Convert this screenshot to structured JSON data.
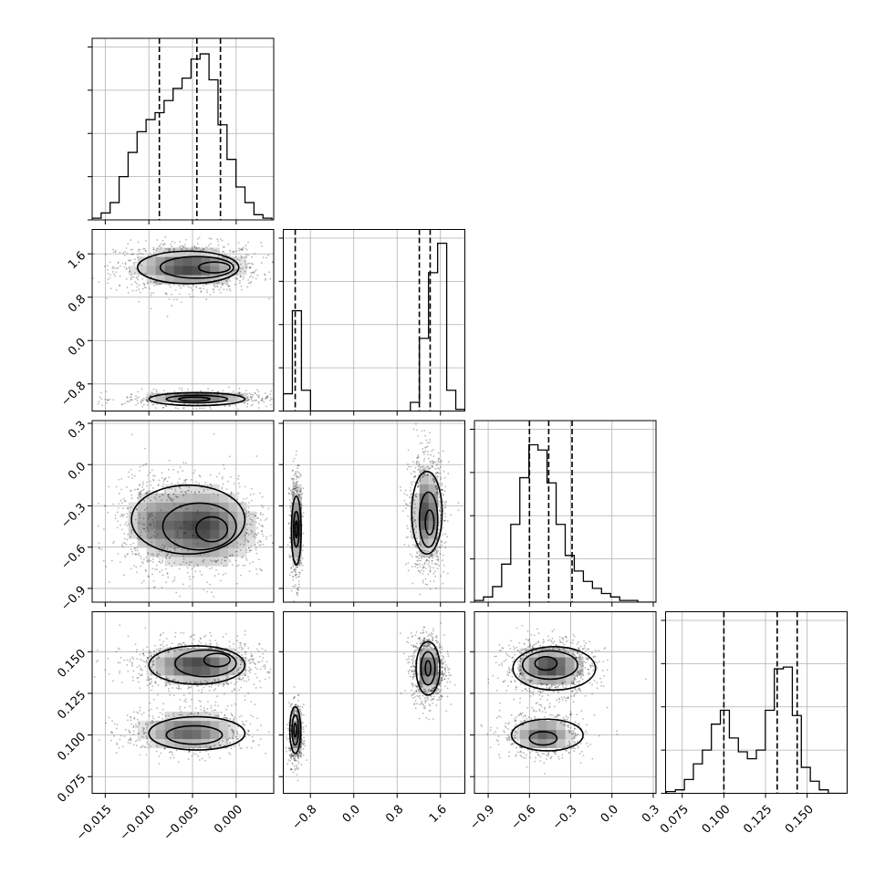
{
  "chart_data": {
    "type": "corner",
    "params": [
      "",
      "",
      "",
      ""
    ],
    "lims": [
      [
        -0.0165,
        0.0043
      ],
      [
        -1.3,
        2.05
      ],
      [
        -1.0,
        0.32
      ],
      [
        0.065,
        0.174
      ]
    ],
    "ticks": [
      [
        -0.015,
        -0.01,
        -0.005,
        0.0
      ],
      [
        -0.8,
        0.0,
        0.8,
        1.6
      ],
      [
        -0.9,
        -0.6,
        -0.3,
        0.0,
        0.3
      ],
      [
        0.075,
        0.1,
        0.125,
        0.15
      ]
    ],
    "tick_labels": [
      [
        "−0.015",
        "−0.010",
        "−0.005",
        "0.000"
      ],
      [
        "−0.8",
        "0.0",
        "0.8",
        "1.6"
      ],
      [
        "−0.9",
        "−0.6",
        "−0.3",
        "0.0",
        "0.3"
      ],
      [
        "0.075",
        "0.100",
        "0.125",
        "0.150"
      ]
    ],
    "quantiles": [
      [
        -0.0088,
        -0.0045,
        -0.0018
      ],
      [
        -1.08,
        1.21,
        1.41
      ],
      [
        -0.6,
        -0.46,
        -0.29
      ],
      [
        0.1,
        0.132,
        0.144
      ]
    ],
    "histograms": [
      {
        "edges_start": -0.0165,
        "bin_width": 0.00103,
        "counts": [
          0.01,
          0.04,
          0.1,
          0.25,
          0.39,
          0.51,
          0.58,
          0.62,
          0.69,
          0.76,
          0.82,
          0.93,
          0.96,
          0.81,
          0.55,
          0.35,
          0.19,
          0.1,
          0.03,
          0.01
        ]
      },
      {
        "edges_start": -1.3,
        "bin_width": 0.1675,
        "counts": [
          0.1,
          0.58,
          0.12,
          0.0,
          0.0,
          0.0,
          0.0,
          0.0,
          0.0,
          0.0,
          0.0,
          0.0,
          0.0,
          0.0,
          0.05,
          0.42,
          0.8,
          0.97,
          0.12,
          0.01
        ]
      },
      {
        "edges_start": -1.0,
        "bin_width": 0.066,
        "counts": [
          0.01,
          0.03,
          0.09,
          0.22,
          0.45,
          0.72,
          0.91,
          0.88,
          0.69,
          0.45,
          0.27,
          0.18,
          0.12,
          0.08,
          0.05,
          0.03,
          0.01,
          0.01,
          0.0,
          0.0
        ]
      },
      {
        "edges_start": 0.0655,
        "bin_width": 0.0054,
        "counts": [
          0.01,
          0.02,
          0.08,
          0.17,
          0.25,
          0.4,
          0.48,
          0.32,
          0.24,
          0.2,
          0.25,
          0.48,
          0.72,
          0.73,
          0.45,
          0.15,
          0.07,
          0.02,
          0.0,
          0.0
        ]
      }
    ],
    "hist_ymax": 1.0,
    "blobs": [
      {
        "row": 1,
        "col": 0,
        "parts": [
          {
            "cx": -0.0055,
            "cy": 1.35,
            "sx": 0.0033,
            "sy": 0.18,
            "w": 1.0,
            "dens": 0.85
          },
          {
            "cx": -0.0045,
            "cy": -1.08,
            "sx": 0.0034,
            "sy": 0.06,
            "w": 0.55,
            "dens": 0.7
          }
        ]
      },
      {
        "row": 2,
        "col": 0,
        "parts": [
          {
            "cx": -0.004,
            "cy": -0.45,
            "sx": 0.0032,
            "sy": 0.15,
            "w": 1.0,
            "dens": 0.85
          },
          {
            "cx": -0.0095,
            "cy": -0.42,
            "sx": 0.0018,
            "sy": 0.13,
            "w": 0.5,
            "dens": 0.4
          }
        ]
      },
      {
        "row": 2,
        "col": 1,
        "parts": [
          {
            "cx": -1.07,
            "cy": -0.45,
            "sx": 0.045,
            "sy": 0.16,
            "w": 0.5,
            "dens": 0.75
          },
          {
            "cx": 1.35,
            "cy": -0.35,
            "sx": 0.13,
            "sy": 0.17,
            "w": 1.0,
            "dens": 0.85
          }
        ]
      },
      {
        "row": 3,
        "col": 0,
        "parts": [
          {
            "cx": -0.0045,
            "cy": 0.142,
            "sx": 0.003,
            "sy": 0.006,
            "w": 1.0,
            "dens": 0.85
          },
          {
            "cx": -0.0055,
            "cy": 0.102,
            "sx": 0.003,
            "sy": 0.006,
            "w": 0.6,
            "dens": 0.7
          }
        ]
      },
      {
        "row": 3,
        "col": 1,
        "parts": [
          {
            "cx": 1.37,
            "cy": 0.14,
            "sx": 0.12,
            "sy": 0.008,
            "w": 1.0,
            "dens": 0.85
          },
          {
            "cx": -1.07,
            "cy": 0.1,
            "sx": 0.05,
            "sy": 0.007,
            "w": 0.55,
            "dens": 0.75
          }
        ]
      },
      {
        "row": 3,
        "col": 2,
        "parts": [
          {
            "cx": -0.45,
            "cy": 0.141,
            "sx": 0.13,
            "sy": 0.0065,
            "w": 1.0,
            "dens": 0.85
          },
          {
            "cx": -0.5,
            "cy": 0.1,
            "sx": 0.12,
            "sy": 0.0055,
            "w": 0.6,
            "dens": 0.7
          }
        ]
      }
    ],
    "contours": [
      {
        "row": 1,
        "col": 0,
        "rings": [
          {
            "cx": -0.0055,
            "cy": 1.35,
            "rx": 0.0058,
            "ry": 0.3
          },
          {
            "cx": -0.0045,
            "cy": 1.35,
            "rx": 0.0042,
            "ry": 0.2
          },
          {
            "cx": -0.0025,
            "cy": 1.35,
            "rx": 0.0018,
            "ry": 0.1
          },
          {
            "cx": -0.0045,
            "cy": -1.08,
            "rx": 0.0055,
            "ry": 0.12
          },
          {
            "cx": -0.0045,
            "cy": -1.08,
            "rx": 0.0035,
            "ry": 0.07
          },
          {
            "cx": -0.0048,
            "cy": -1.08,
            "rx": 0.0018,
            "ry": 0.035
          }
        ]
      },
      {
        "row": 2,
        "col": 0,
        "rings": [
          {
            "cx": -0.0055,
            "cy": -0.4,
            "rx": 0.0065,
            "ry": 0.25
          },
          {
            "cx": -0.0042,
            "cy": -0.45,
            "rx": 0.0042,
            "ry": 0.17
          },
          {
            "cx": -0.0028,
            "cy": -0.47,
            "rx": 0.0018,
            "ry": 0.09
          }
        ]
      },
      {
        "row": 2,
        "col": 1,
        "rings": [
          {
            "cx": -1.06,
            "cy": -0.48,
            "rx": 0.09,
            "ry": 0.25
          },
          {
            "cx": -1.06,
            "cy": -0.47,
            "rx": 0.05,
            "ry": 0.13
          },
          {
            "cx": -1.06,
            "cy": -0.47,
            "rx": 0.02,
            "ry": 0.06
          },
          {
            "cx": 1.35,
            "cy": -0.35,
            "rx": 0.28,
            "ry": 0.3
          },
          {
            "cx": 1.38,
            "cy": -0.4,
            "rx": 0.17,
            "ry": 0.2
          },
          {
            "cx": 1.4,
            "cy": -0.42,
            "rx": 0.08,
            "ry": 0.09
          }
        ]
      },
      {
        "row": 3,
        "col": 0,
        "rings": [
          {
            "cx": -0.0045,
            "cy": 0.142,
            "rx": 0.0055,
            "ry": 0.0115
          },
          {
            "cx": -0.0035,
            "cy": 0.143,
            "rx": 0.0035,
            "ry": 0.008
          },
          {
            "cx": -0.0022,
            "cy": 0.145,
            "rx": 0.0015,
            "ry": 0.004
          },
          {
            "cx": -0.0045,
            "cy": 0.101,
            "rx": 0.0055,
            "ry": 0.01
          },
          {
            "cx": -0.0048,
            "cy": 0.1,
            "rx": 0.0032,
            "ry": 0.0055
          }
        ]
      },
      {
        "row": 3,
        "col": 1,
        "rings": [
          {
            "cx": 1.37,
            "cy": 0.14,
            "rx": 0.22,
            "ry": 0.016
          },
          {
            "cx": 1.37,
            "cy": 0.14,
            "rx": 0.13,
            "ry": 0.01
          },
          {
            "cx": 1.37,
            "cy": 0.14,
            "rx": 0.05,
            "ry": 0.0045
          },
          {
            "cx": -1.08,
            "cy": 0.103,
            "rx": 0.1,
            "ry": 0.014
          },
          {
            "cx": -1.08,
            "cy": 0.103,
            "rx": 0.06,
            "ry": 0.009
          },
          {
            "cx": -1.08,
            "cy": 0.103,
            "rx": 0.025,
            "ry": 0.004
          }
        ]
      },
      {
        "row": 3,
        "col": 2,
        "rings": [
          {
            "cx": -0.42,
            "cy": 0.14,
            "rx": 0.3,
            "ry": 0.013
          },
          {
            "cx": -0.45,
            "cy": 0.142,
            "rx": 0.2,
            "ry": 0.0085
          },
          {
            "cx": -0.48,
            "cy": 0.143,
            "rx": 0.08,
            "ry": 0.004
          },
          {
            "cx": -0.47,
            "cy": 0.1,
            "rx": 0.26,
            "ry": 0.0095
          },
          {
            "cx": -0.5,
            "cy": 0.098,
            "rx": 0.1,
            "ry": 0.004
          }
        ]
      }
    ],
    "grid": true
  }
}
